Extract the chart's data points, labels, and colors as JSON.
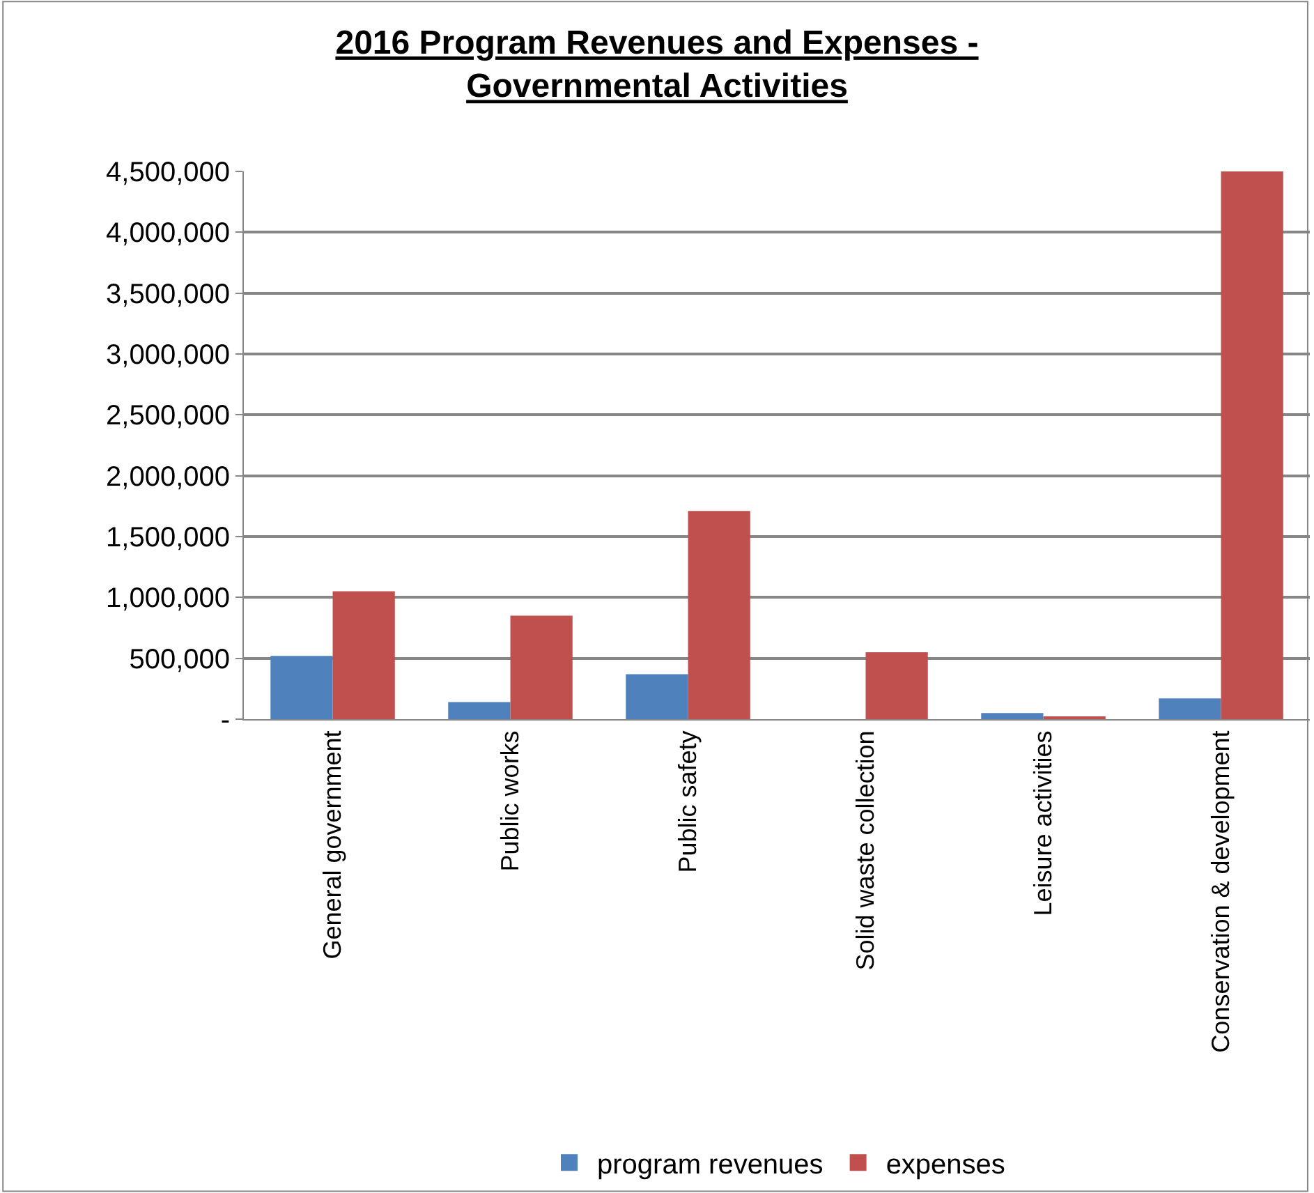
{
  "chart_data": {
    "type": "bar",
    "title": "2016 Program Revenues and Expenses -\nGovernmental Activities",
    "categories": [
      "General government",
      "Public works",
      "Public safety",
      "Solid waste collection",
      "Leisure activities",
      "Conservation & development"
    ],
    "series": [
      {
        "name": "program revenues",
        "color": "#4f81bd",
        "values": [
          520000,
          140000,
          370000,
          0,
          50000,
          170000
        ]
      },
      {
        "name": "expenses",
        "color": "#c0504d",
        "values": [
          1050000,
          850000,
          1710000,
          550000,
          20000,
          4500000
        ]
      }
    ],
    "ylim": [
      0,
      4500000
    ],
    "yticks": [
      {
        "value": 0,
        "label": "-"
      },
      {
        "value": 500000,
        "label": "500,000"
      },
      {
        "value": 1000000,
        "label": "1,000,000"
      },
      {
        "value": 1500000,
        "label": "1,500,000"
      },
      {
        "value": 2000000,
        "label": "2,000,000"
      },
      {
        "value": 2500000,
        "label": "2,500,000"
      },
      {
        "value": 3000000,
        "label": "3,000,000"
      },
      {
        "value": 3500000,
        "label": "3,500,000"
      },
      {
        "value": 4000000,
        "label": "4,000,000"
      },
      {
        "value": 4500000,
        "label": "4,500,000"
      }
    ],
    "grid": "y",
    "legend": "bottom"
  }
}
